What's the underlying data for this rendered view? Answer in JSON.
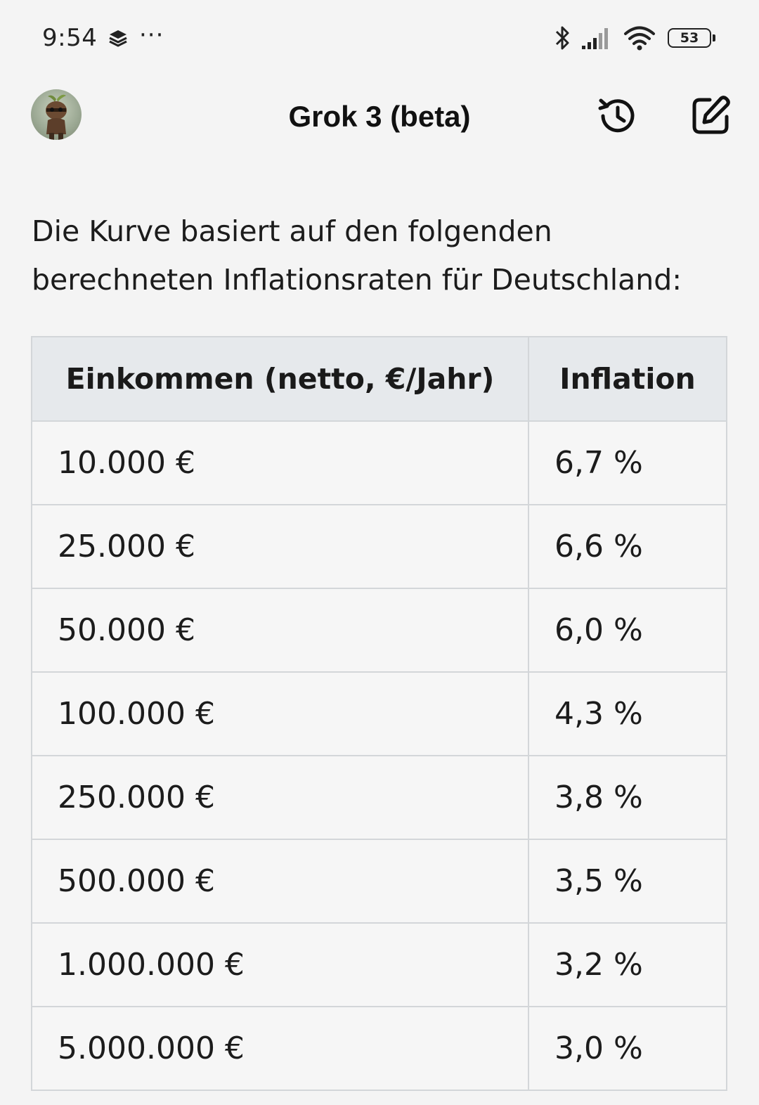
{
  "status_bar": {
    "time": "9:54",
    "more": "···",
    "battery": "53"
  },
  "header": {
    "title": "Grok 3 (beta)"
  },
  "message": {
    "line1": "Die Kurve basiert auf den folgenden",
    "line2": "berechneten Inflationsraten für Deutschland:"
  },
  "table": {
    "headers": [
      "Einkommen (netto, €/Jahr)",
      "Inflation"
    ],
    "rows": [
      {
        "income": "10.000 €",
        "inflation": "6,7 %"
      },
      {
        "income": "25.000 €",
        "inflation": "6,6 %"
      },
      {
        "income": "50.000 €",
        "inflation": "6,0 %"
      },
      {
        "income": "100.000 €",
        "inflation": "4,3 %"
      },
      {
        "income": "250.000 €",
        "inflation": "3,8 %"
      },
      {
        "income": "500.000 €",
        "inflation": "3,5 %"
      },
      {
        "income": "1.000.000 €",
        "inflation": "3,2 %"
      },
      {
        "income": "5.000.000 €",
        "inflation": "3,0 %"
      }
    ]
  }
}
